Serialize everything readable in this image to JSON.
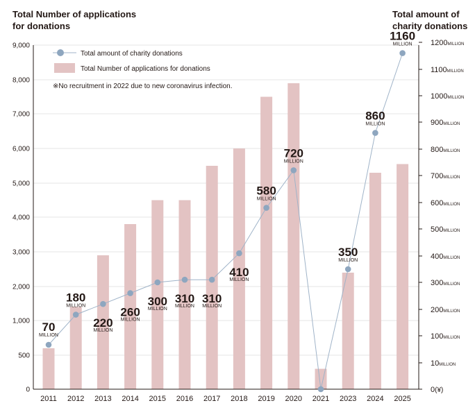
{
  "chart_data": {
    "type": "bar+line",
    "y_left_title": "Total Number of applications for donations",
    "y_right_title": "Total amount of charity donations",
    "legend": {
      "line_label": "Total amount of charity donations",
      "bar_label": "Total Number of applications for donations",
      "note": "※No recruitment in 2022 due to new coronavirus infection."
    },
    "categories": [
      "2011",
      "2012",
      "2013",
      "2014",
      "2015",
      "2016",
      "2017",
      "2018",
      "2019",
      "2020",
      "2021",
      "2023",
      "2024",
      "2025"
    ],
    "left_axis": {
      "ylim": [
        0,
        9000
      ],
      "ticks": [
        0,
        500,
        1000,
        2000,
        3000,
        4000,
        5000,
        6000,
        7000,
        8000,
        9000
      ],
      "tick_labels": [
        "0",
        "500",
        "1,000",
        "2,000",
        "3,000",
        "4,000",
        "5,000",
        "6,000",
        "7,000",
        "8,000",
        "9,000"
      ]
    },
    "right_axis": {
      "ticks": [
        0,
        10,
        100,
        200,
        300,
        400,
        500,
        600,
        700,
        800,
        900,
        1000,
        1100,
        1200
      ],
      "tick_labels": [
        "0",
        "10",
        "100",
        "200",
        "300",
        "400",
        "500",
        "600",
        "700",
        "800",
        "900",
        "1000",
        "1100",
        "1200"
      ],
      "unit_label": "MILLION",
      "zero_suffix": "(¥)"
    },
    "series": [
      {
        "name": "Total Number of applications for donations",
        "type": "bar",
        "axis": "left",
        "color": "#e3c3c3",
        "values": [
          600,
          1400,
          2900,
          3800,
          4500,
          4500,
          5500,
          6000,
          7500,
          7900,
          300,
          2400,
          5300,
          5550
        ]
      },
      {
        "name": "Total amount of charity donations",
        "type": "line",
        "axis": "right",
        "color": "#8ea6bf",
        "line_color": "#9fb3c8",
        "values": [
          70,
          180,
          220,
          260,
          300,
          310,
          310,
          410,
          580,
          720,
          0,
          350,
          860,
          1160
        ],
        "data_labels": [
          "70",
          "180",
          "220",
          "260",
          "300",
          "310",
          "310",
          "410",
          "580",
          "720",
          "",
          "350",
          "860",
          "1160"
        ],
        "label_unit": "MILLION"
      }
    ]
  }
}
